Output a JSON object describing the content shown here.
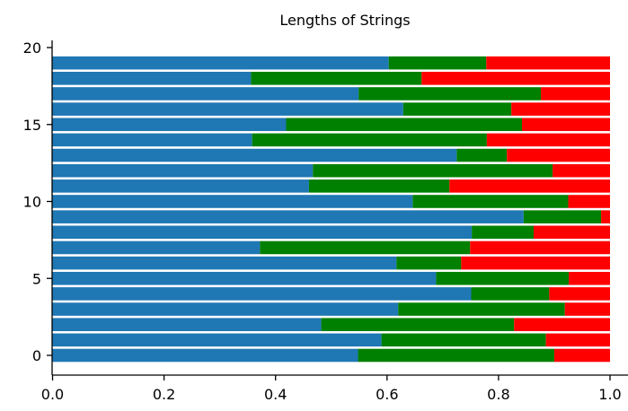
{
  "chart_data": {
    "type": "bar",
    "orientation": "horizontal",
    "stacked": true,
    "title": "Lengths of Strings",
    "xlabel": "",
    "ylabel": "",
    "xlim": [
      0.0,
      1.0
    ],
    "ylim": [
      -1.25,
      20.4
    ],
    "grid": false,
    "legend": "none",
    "categories": [
      0,
      1,
      2,
      3,
      4,
      5,
      6,
      7,
      8,
      9,
      10,
      11,
      12,
      13,
      14,
      15,
      16,
      17,
      18,
      19
    ],
    "x_ticks": [
      "0.0",
      "0.2",
      "0.4",
      "0.6",
      "0.8",
      "1.0"
    ],
    "y_ticks": [
      "0",
      "5",
      "10",
      "15",
      "20"
    ],
    "series": [
      {
        "color": "#1f77b4",
        "values": [
          0.548,
          0.59,
          0.482,
          0.62,
          0.751,
          0.688,
          0.617,
          0.372,
          0.752,
          0.845,
          0.646,
          0.46,
          0.467,
          0.725,
          0.358,
          0.419,
          0.629,
          0.549,
          0.356,
          0.603
        ]
      },
      {
        "color": "#008000",
        "values": [
          0.352,
          0.295,
          0.346,
          0.299,
          0.14,
          0.238,
          0.116,
          0.377,
          0.111,
          0.139,
          0.279,
          0.252,
          0.43,
          0.09,
          0.421,
          0.423,
          0.194,
          0.327,
          0.306,
          0.175
        ]
      },
      {
        "color": "#ff0000",
        "values": [
          0.1,
          0.115,
          0.172,
          0.081,
          0.109,
          0.074,
          0.267,
          0.251,
          0.137,
          0.016,
          0.075,
          0.288,
          0.103,
          0.185,
          0.221,
          0.158,
          0.177,
          0.124,
          0.338,
          0.222
        ]
      }
    ]
  }
}
